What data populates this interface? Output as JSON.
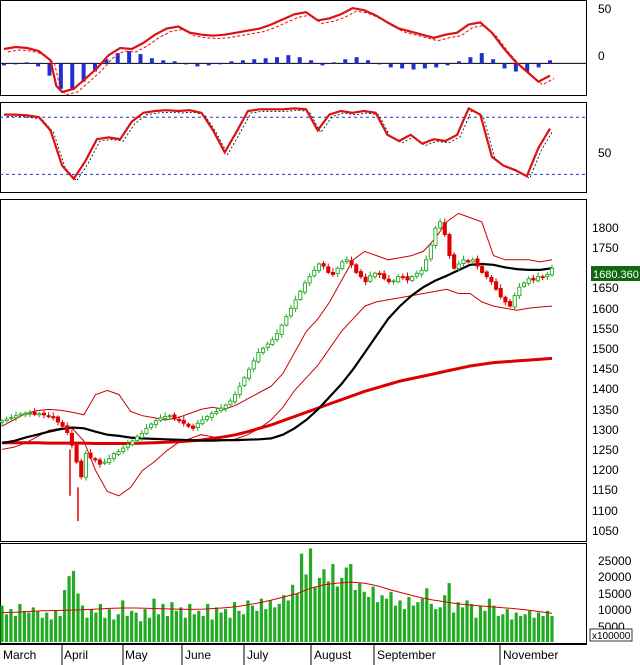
{
  "colors": {
    "up": "#22aa22",
    "down": "#dd0000",
    "signal_line": "#dd1111",
    "ma_fast": "#000000",
    "ma_slow": "#dd0000",
    "band": "#cc0000",
    "hist_pos": "#1f2fd0",
    "hist_neg": "#1f2fd0",
    "volume": "#22aa22",
    "grid": "#1a3fd0",
    "tag_bg": "#116611"
  },
  "chart_data": [
    {
      "panel": "oscillator-1",
      "type": "line",
      "y_ticks": [
        "50",
        "0"
      ],
      "ylim": [
        -30,
        60
      ],
      "signal_x": [
        0,
        4,
        8,
        12,
        16,
        18,
        20,
        24,
        28,
        32,
        36,
        40,
        44,
        48,
        52,
        56,
        60,
        64,
        68,
        72,
        76,
        80,
        84,
        88,
        92,
        96,
        100,
        104,
        108,
        112,
        116,
        120,
        124,
        128,
        132,
        136,
        140,
        144,
        148,
        152,
        156,
        160,
        164,
        168,
        172,
        176,
        180,
        184,
        188
      ],
      "signal": [
        14,
        16,
        15,
        12,
        3,
        -22,
        -28,
        -25,
        -15,
        -5,
        8,
        15,
        14,
        20,
        28,
        34,
        36,
        30,
        28,
        27,
        28,
        30,
        32,
        34,
        38,
        43,
        48,
        50,
        42,
        44,
        48,
        54,
        52,
        47,
        40,
        34,
        31,
        28,
        25,
        28,
        30,
        38,
        40,
        30,
        15,
        2,
        -8,
        -18,
        -12
      ],
      "histogram": [
        -2,
        -1,
        1,
        -3,
        -12,
        -25,
        -26,
        -18,
        -8,
        4,
        10,
        12,
        9,
        5,
        3,
        2,
        -1,
        -3,
        -2,
        0,
        2,
        3,
        4,
        5,
        6,
        8,
        6,
        3,
        -2,
        1,
        4,
        6,
        3,
        -1,
        -4,
        -5,
        -6,
        -5,
        -4,
        -2,
        2,
        6,
        10,
        4,
        -5,
        -8,
        -8,
        -4,
        3
      ]
    },
    {
      "panel": "oscillator-2",
      "type": "line",
      "y_ticks": [
        "50"
      ],
      "ylim": [
        0,
        100
      ],
      "reference_levels": [
        85,
        20
      ],
      "x": [
        0,
        4,
        8,
        12,
        16,
        20,
        24,
        28,
        32,
        36,
        40,
        44,
        48,
        52,
        56,
        60,
        64,
        68,
        72,
        76,
        80,
        84,
        88,
        92,
        96,
        100,
        104,
        108,
        112,
        116,
        120,
        124,
        128,
        132,
        136,
        140,
        144,
        148,
        152,
        156,
        160,
        164,
        168,
        172,
        176,
        180,
        184,
        188
      ],
      "values": [
        88,
        88,
        87,
        85,
        70,
        30,
        15,
        35,
        60,
        62,
        60,
        80,
        90,
        92,
        93,
        92,
        93,
        90,
        70,
        45,
        68,
        92,
        94,
        94,
        94,
        95,
        94,
        70,
        88,
        92,
        90,
        92,
        90,
        65,
        58,
        65,
        55,
        60,
        58,
        65,
        95,
        88,
        40,
        30,
        25,
        18,
        50,
        72
      ]
    },
    {
      "panel": "price",
      "type": "candlestick",
      "y_ticks": [
        "1800",
        "1750",
        "1700",
        "1650",
        "1600",
        "1550",
        "1500",
        "1450",
        "1400",
        "1350",
        "1300",
        "1250",
        "1200",
        "1150",
        "1100",
        "1050"
      ],
      "ylim": [
        1035,
        1830
      ],
      "last_price_label": "1680.360",
      "close": [
        1318,
        1322,
        1326,
        1330,
        1334,
        1335,
        1336,
        1333,
        1335,
        1332,
        1328,
        1325,
        1315,
        1305,
        1290,
        1260,
        1220,
        1185,
        1240,
        1230,
        1225,
        1215,
        1220,
        1228,
        1240,
        1245,
        1253,
        1262,
        1270,
        1280,
        1288,
        1300,
        1310,
        1318,
        1325,
        1328,
        1330,
        1322,
        1318,
        1312,
        1305,
        1300,
        1312,
        1320,
        1328,
        1335,
        1340,
        1348,
        1355,
        1365,
        1380,
        1400,
        1420,
        1440,
        1460,
        1480,
        1490,
        1500,
        1510,
        1525,
        1545,
        1565,
        1585,
        1605,
        1625,
        1645,
        1660,
        1675,
        1690,
        1685,
        1670,
        1665,
        1680,
        1695,
        1700,
        1688,
        1670,
        1660,
        1648,
        1662,
        1668,
        1665,
        1655,
        1648,
        1650,
        1660,
        1658,
        1652,
        1660,
        1668,
        1675,
        1700,
        1735,
        1775,
        1790,
        1760,
        1710,
        1680,
        1690,
        1700,
        1695,
        1700,
        1685,
        1670,
        1660,
        1648,
        1630,
        1612,
        1600,
        1590,
        1615,
        1635,
        1645,
        1655,
        1652,
        1660,
        1658,
        1665,
        1680
      ],
      "ma_fast": [
        1265,
        1270,
        1278,
        1285,
        1292,
        1298,
        1302,
        1300,
        1292,
        1285,
        1282,
        1278,
        1276,
        1275,
        1274,
        1273,
        1272,
        1271,
        1271,
        1272,
        1272,
        1273,
        1274,
        1276,
        1285,
        1300,
        1320,
        1345,
        1375,
        1405,
        1440,
        1480,
        1520,
        1560,
        1590,
        1615,
        1635,
        1650,
        1662,
        1675,
        1688,
        1690,
        1688,
        1682,
        1678,
        1676,
        1676,
        1680
      ],
      "ma_slow": [
        1266,
        1266,
        1266,
        1266,
        1265,
        1265,
        1265,
        1265,
        1264,
        1264,
        1264,
        1264,
        1265,
        1266,
        1267,
        1268,
        1270,
        1272,
        1276,
        1280,
        1285,
        1292,
        1300,
        1308,
        1318,
        1328,
        1338,
        1348,
        1358,
        1368,
        1378,
        1388,
        1396,
        1404,
        1412,
        1418,
        1424,
        1430,
        1436,
        1442,
        1448,
        1452,
        1456,
        1458,
        1460,
        1462,
        1464,
        1466
      ],
      "band_upper": [
        1305,
        1320,
        1335,
        1342,
        1345,
        1343,
        1338,
        1332,
        1380,
        1390,
        1380,
        1340,
        1330,
        1325,
        1320,
        1325,
        1335,
        1345,
        1350,
        1345,
        1355,
        1370,
        1385,
        1400,
        1430,
        1480,
        1530,
        1560,
        1600,
        1650,
        1700,
        1720,
        1710,
        1700,
        1705,
        1710,
        1720,
        1750,
        1790,
        1810,
        1800,
        1790,
        1710,
        1700,
        1700,
        1700,
        1695,
        1700
      ],
      "band_lower": [
        1250,
        1255,
        1265,
        1280,
        1295,
        1300,
        1300,
        1270,
        1200,
        1150,
        1140,
        1160,
        1200,
        1220,
        1245,
        1265,
        1275,
        1285,
        1280,
        1270,
        1275,
        1285,
        1300,
        1320,
        1350,
        1390,
        1420,
        1450,
        1490,
        1530,
        1560,
        1590,
        1600,
        1605,
        1610,
        1615,
        1620,
        1625,
        1630,
        1620,
        1620,
        1600,
        1590,
        1585,
        1580,
        1585,
        1588,
        1590
      ]
    },
    {
      "panel": "volume",
      "type": "bar",
      "y_ticks": [
        "25000",
        "20000",
        "15000",
        "10000",
        "5000"
      ],
      "unit_label": "x100000",
      "ylim": [
        0,
        28000
      ],
      "values": [
        10500,
        8000,
        9500,
        7500,
        11000,
        9000,
        8500,
        10000,
        9000,
        7000,
        8500,
        6500,
        9000,
        7500,
        15000,
        19000,
        20500,
        14000,
        10500,
        7000,
        9500,
        8500,
        11000,
        7000,
        9500,
        6500,
        8000,
        12000,
        7500,
        9000,
        8500,
        6000,
        9500,
        7000,
        12500,
        8000,
        11000,
        7500,
        11500,
        9000,
        10000,
        7000,
        11000,
        8000,
        9000,
        7500,
        11000,
        6500,
        10000,
        8500,
        9500,
        7000,
        11500,
        9000,
        8000,
        12000,
        10500,
        9000,
        12500,
        9500,
        12000,
        10000,
        11000,
        13500,
        12000,
        16500,
        14000,
        25500,
        19500,
        27000,
        16000,
        18500,
        21000,
        17500,
        22500,
        16000,
        18500,
        21500,
        22500,
        15000,
        17000,
        14500,
        13000,
        16000,
        11500,
        13500,
        12500,
        14500,
        10500,
        12000,
        9500,
        13000,
        10500,
        11500,
        12500,
        15500,
        11000,
        9500,
        10000,
        13500,
        17000,
        8500,
        11500,
        10000,
        12000,
        11000,
        7000,
        10500,
        9000,
        12500,
        10500,
        7500,
        8000,
        9500,
        6500,
        8500,
        7500,
        8000,
        9000,
        7000,
        8500,
        7500,
        9000,
        7500
      ],
      "ma": [
        8500,
        8600,
        8800,
        9000,
        9100,
        9200,
        9300,
        9500,
        9700,
        9800,
        9800,
        9700,
        9600,
        9500,
        9400,
        9500,
        9700,
        10000,
        10500,
        11200,
        12000,
        13000,
        14000,
        15500,
        16500,
        17000,
        17300,
        17000,
        16200,
        15000,
        14000,
        13000,
        12200,
        11600,
        11000,
        10600,
        10300,
        10000,
        9700,
        9300,
        8800,
        8300
      ]
    }
  ],
  "x_axis": {
    "labels": [
      "March",
      "April",
      "May",
      "June",
      "July",
      "August",
      "September",
      "November"
    ]
  }
}
